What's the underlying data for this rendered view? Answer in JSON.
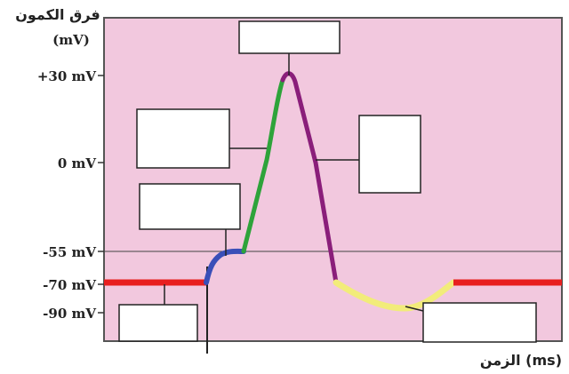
{
  "axes": {
    "y_title": "فرق الكمون",
    "y_unit": "(mV)",
    "x_title": "الزمن (ms)",
    "ticks": [
      "+30 mV",
      "0 mV",
      "-55 mV",
      "-70 mV",
      "-90 mV"
    ]
  },
  "colors": {
    "plot_background": "#f2c8de",
    "resting": "#e81f1f",
    "depolarization_start": "#3a4fb8",
    "depolarization": "#2ea33a",
    "repolarization": "#8a1e7a",
    "hyperpolarization": "#f2ec7a"
  },
  "boxes": [
    "",
    "",
    "",
    "",
    "",
    ""
  ]
}
